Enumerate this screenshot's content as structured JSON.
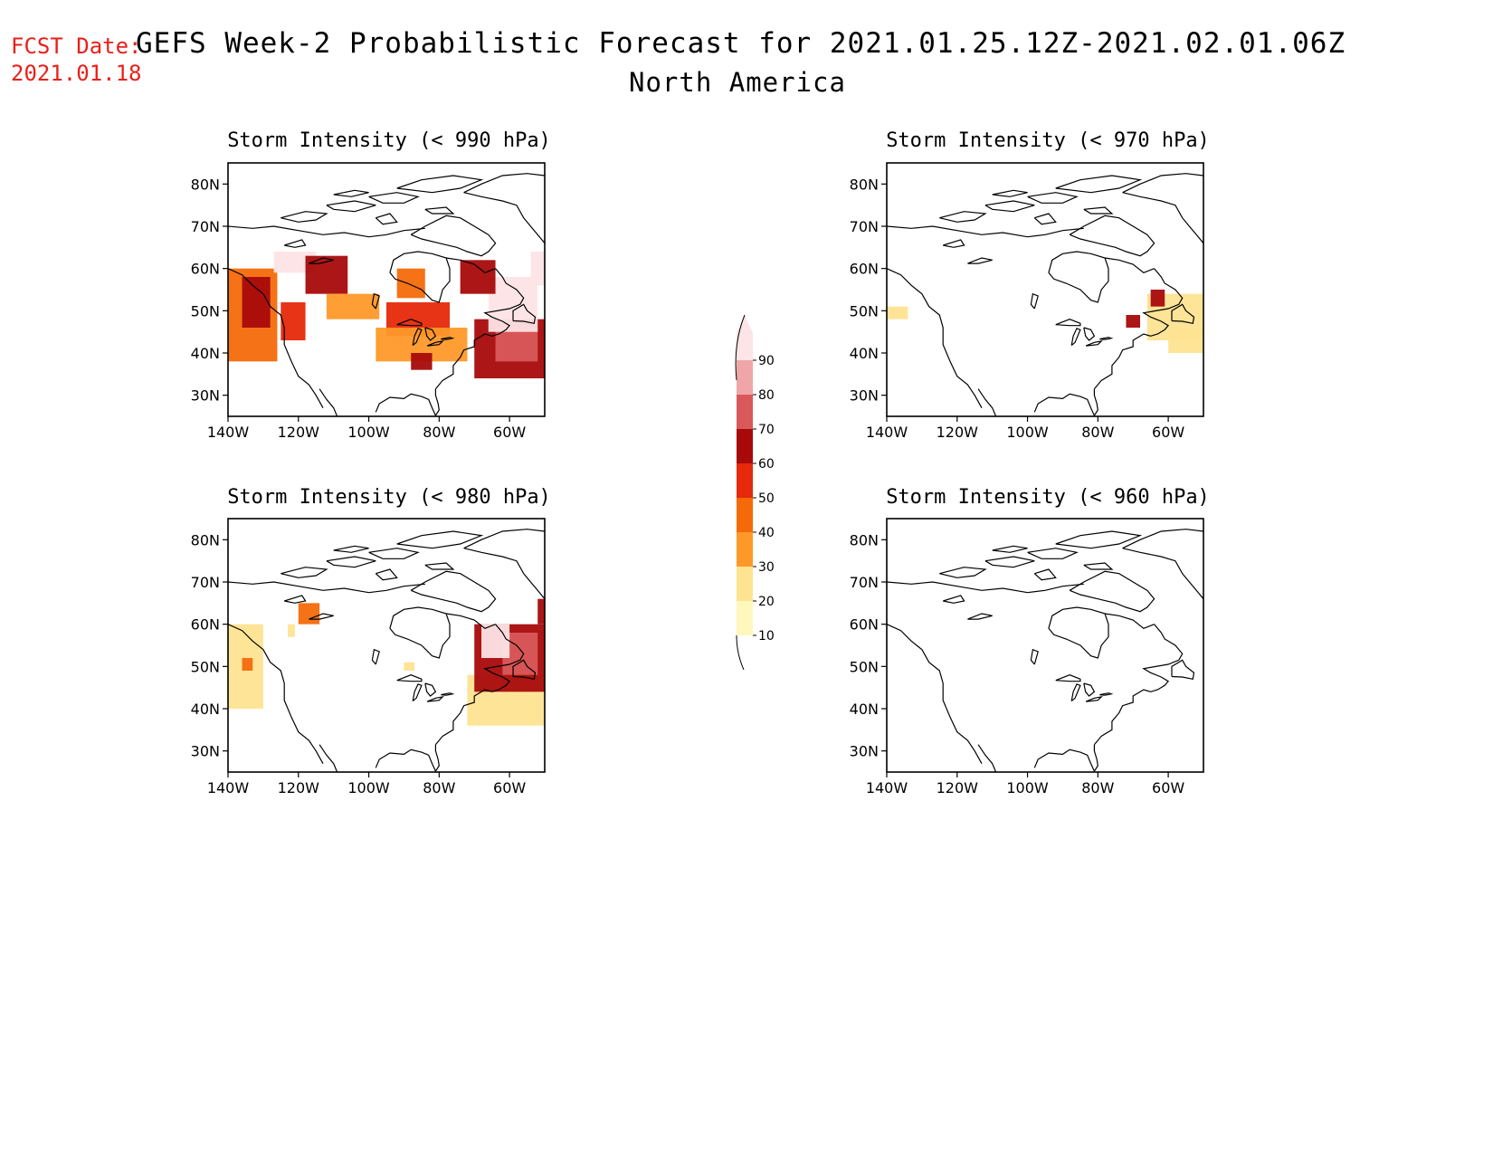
{
  "forecast_date": {
    "label": "FCST Date:",
    "value": "2021.01.18"
  },
  "title": "GEFS Week-2 Probabilistic Forecast for 2021.01.25.12Z-2021.02.01.06Z",
  "subtitle": "North America",
  "colors": {
    "accent_red": "#e8201a",
    "scale": [
      "#fff7bc",
      "#fee391",
      "#fe9929",
      "#f46a09",
      "#e6290a",
      "#a80a0a",
      "#d9595a",
      "#f0a6a8",
      "#fde4e6"
    ]
  },
  "colorbar": {
    "levels": [
      "10",
      "20",
      "30",
      "40",
      "50",
      "60",
      "70",
      "80",
      "90"
    ]
  },
  "panels": [
    {
      "id": "p990",
      "title": "Storm Intensity (< 990 hPa)",
      "lat_labels": [
        "80N",
        "70N",
        "60N",
        "50N",
        "40N",
        "30N"
      ],
      "lon_labels": [
        "140W",
        "120W",
        "100W",
        "80W",
        "60W"
      ],
      "regions": [
        {
          "level": 3,
          "lon": [
            -140,
            -126
          ],
          "lat": [
            38,
            60
          ]
        },
        {
          "level": 5,
          "lon": [
            -136,
            -128
          ],
          "lat": [
            46,
            58
          ]
        },
        {
          "level": 4,
          "lon": [
            -125,
            -118
          ],
          "lat": [
            43,
            52
          ]
        },
        {
          "level": 8,
          "lon": [
            -127,
            -115
          ],
          "lat": [
            59,
            64
          ]
        },
        {
          "level": 5,
          "lon": [
            -118,
            -106
          ],
          "lat": [
            54,
            63
          ]
        },
        {
          "level": 2,
          "lon": [
            -112,
            -97
          ],
          "lat": [
            48,
            54
          ]
        },
        {
          "level": 4,
          "lon": [
            -95,
            -77
          ],
          "lat": [
            44,
            52
          ]
        },
        {
          "level": 2,
          "lon": [
            -98,
            -72
          ],
          "lat": [
            38,
            46
          ]
        },
        {
          "level": 5,
          "lon": [
            -88,
            -82
          ],
          "lat": [
            36,
            40
          ]
        },
        {
          "level": 3,
          "lon": [
            -92,
            -84
          ],
          "lat": [
            53,
            60
          ]
        },
        {
          "level": 5,
          "lon": [
            -70,
            -50
          ],
          "lat": [
            34,
            48
          ]
        },
        {
          "level": 6,
          "lon": [
            -64,
            -52
          ],
          "lat": [
            38,
            46
          ]
        },
        {
          "level": 8,
          "lon": [
            -66,
            -52
          ],
          "lat": [
            45,
            58
          ]
        },
        {
          "level": 5,
          "lon": [
            -74,
            -64
          ],
          "lat": [
            54,
            62
          ]
        },
        {
          "level": 8,
          "lon": [
            -54,
            -50
          ],
          "lat": [
            56,
            64
          ]
        }
      ]
    },
    {
      "id": "p970",
      "title": "Storm Intensity (< 970 hPa)",
      "lat_labels": [
        "80N",
        "70N",
        "60N",
        "50N",
        "40N",
        "30N"
      ],
      "lon_labels": [
        "140W",
        "120W",
        "100W",
        "80W",
        "60W"
      ],
      "regions": [
        {
          "level": 1,
          "lon": [
            -140,
            -134
          ],
          "lat": [
            48,
            51
          ]
        },
        {
          "level": 1,
          "lon": [
            -66,
            -50
          ],
          "lat": [
            43,
            54
          ]
        },
        {
          "level": 1,
          "lon": [
            -60,
            -50
          ],
          "lat": [
            40,
            46
          ]
        },
        {
          "level": 5,
          "lon": [
            -72,
            -68
          ],
          "lat": [
            46,
            49
          ]
        },
        {
          "level": 5,
          "lon": [
            -65,
            -61
          ],
          "lat": [
            51,
            55
          ]
        }
      ]
    },
    {
      "id": "p980",
      "title": "Storm Intensity (< 980 hPa)",
      "lat_labels": [
        "80N",
        "70N",
        "60N",
        "50N",
        "40N",
        "30N"
      ],
      "lon_labels": [
        "140W",
        "120W",
        "100W",
        "80W",
        "60W"
      ],
      "regions": [
        {
          "level": 1,
          "lon": [
            -140,
            -130
          ],
          "lat": [
            40,
            60
          ]
        },
        {
          "level": 3,
          "lon": [
            -136,
            -133
          ],
          "lat": [
            49,
            52
          ]
        },
        {
          "level": 1,
          "lon": [
            -123,
            -121
          ],
          "lat": [
            57,
            60
          ]
        },
        {
          "level": 3,
          "lon": [
            -120,
            -114
          ],
          "lat": [
            60,
            65
          ]
        },
        {
          "level": 1,
          "lon": [
            -90,
            -87
          ],
          "lat": [
            49,
            51
          ]
        },
        {
          "level": 1,
          "lon": [
            -72,
            -50
          ],
          "lat": [
            36,
            48
          ]
        },
        {
          "level": 5,
          "lon": [
            -70,
            -50
          ],
          "lat": [
            44,
            60
          ]
        },
        {
          "level": 6,
          "lon": [
            -62,
            -52
          ],
          "lat": [
            48,
            58
          ]
        },
        {
          "level": 8,
          "lon": [
            -68,
            -60
          ],
          "lat": [
            52,
            60
          ]
        },
        {
          "level": 5,
          "lon": [
            -52,
            -50
          ],
          "lat": [
            60,
            66
          ]
        }
      ]
    },
    {
      "id": "p960",
      "title": "Storm Intensity (< 960 hPa)",
      "lat_labels": [
        "80N",
        "70N",
        "60N",
        "50N",
        "40N",
        "30N"
      ],
      "lon_labels": [
        "140W",
        "120W",
        "100W",
        "80W",
        "60W"
      ],
      "regions": []
    }
  ]
}
